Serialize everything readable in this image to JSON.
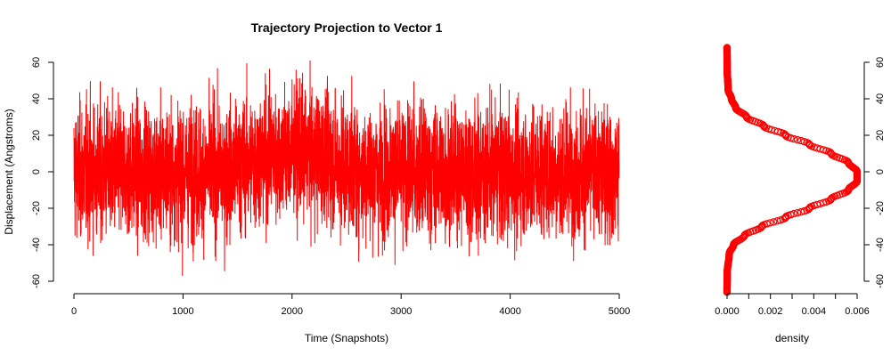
{
  "chart_data": [
    {
      "type": "line",
      "title": "Trajectory Projection to Vector 1",
      "xlabel": "Time (Snapshots)",
      "ylabel": "Displacement (Angstroms)",
      "xlim": [
        0,
        5000
      ],
      "ylim": [
        -60,
        60
      ],
      "x_ticks": [
        "0",
        "1000",
        "2000",
        "3000",
        "4000",
        "5000"
      ],
      "y_ticks": [
        "-60",
        "-40",
        "-20",
        "0",
        "20",
        "40",
        "60"
      ],
      "series_color": "#ff0000",
      "grid": false,
      "n_points": 5000,
      "x_step": 1,
      "value_range": [
        -60,
        61
      ],
      "note_values": "Noisy time series fluctuating around 0 (typically -30 to 30), with a slightly higher mean (around +10) between ~1500 and ~2500 snapshots; extremes near +61 and -60."
    },
    {
      "type": "line",
      "title": "",
      "xlabel": "density",
      "ylabel": "",
      "xlim": [
        0,
        0.006
      ],
      "ylim": [
        -60,
        60
      ],
      "x_ticks": [
        "0.000",
        "0.002",
        "0.004",
        "0.006"
      ],
      "y_ticks": [
        "-60",
        "-40",
        "-20",
        "0",
        "20",
        "40",
        "60"
      ],
      "y_axis_side": "right",
      "series_color": "#ff0000",
      "marker": "open-circle",
      "points": [
        {
          "y": -66,
          "x": 0.0
        },
        {
          "y": -55,
          "x": 1e-05
        },
        {
          "y": -45,
          "x": 0.0001
        },
        {
          "y": -40,
          "x": 0.0003
        },
        {
          "y": -35,
          "x": 0.0008
        },
        {
          "y": -30,
          "x": 0.0016
        },
        {
          "y": -25,
          "x": 0.0027
        },
        {
          "y": -20,
          "x": 0.0038
        },
        {
          "y": -15,
          "x": 0.0048
        },
        {
          "y": -10,
          "x": 0.0056
        },
        {
          "y": -5,
          "x": 0.006
        },
        {
          "y": 0,
          "x": 0.006
        },
        {
          "y": 5,
          "x": 0.0056
        },
        {
          "y": 10,
          "x": 0.0048
        },
        {
          "y": 15,
          "x": 0.0038
        },
        {
          "y": 20,
          "x": 0.0027
        },
        {
          "y": 25,
          "x": 0.0017
        },
        {
          "y": 30,
          "x": 0.0009
        },
        {
          "y": 35,
          "x": 0.0004
        },
        {
          "y": 40,
          "x": 0.0002
        },
        {
          "y": 45,
          "x": 5e-05
        },
        {
          "y": 55,
          "x": 1e-05
        },
        {
          "y": 68,
          "x": 0.0
        }
      ]
    }
  ]
}
